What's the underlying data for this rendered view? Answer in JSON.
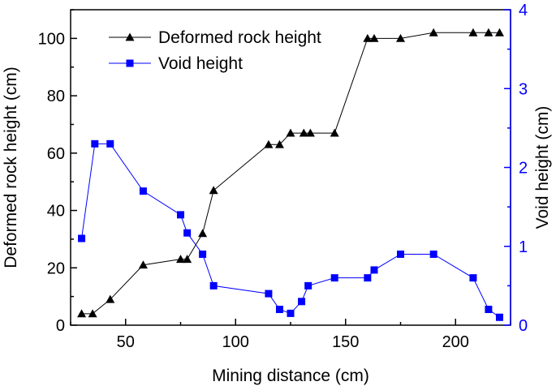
{
  "chart_data": {
    "type": "line",
    "xlabel": "Mining distance (cm)",
    "ylabel_left": "Deformed rock height (cm)",
    "ylabel_right": "Void height (cm)",
    "xlim": [
      25,
      225
    ],
    "ylim_left": [
      0,
      110
    ],
    "ylim_right": [
      0,
      4
    ],
    "x_ticks": [
      50,
      100,
      150,
      200
    ],
    "x_tick_labels": [
      "50",
      "100",
      "150",
      "200"
    ],
    "y_left_ticks": [
      0,
      20,
      40,
      60,
      80,
      100
    ],
    "y_left_tick_labels": [
      "0",
      "20",
      "40",
      "60",
      "80",
      "100"
    ],
    "y_right_ticks": [
      0,
      1,
      2,
      3,
      4
    ],
    "y_right_tick_labels": [
      "0",
      "1",
      "2",
      "3",
      "4"
    ],
    "legend_position": "top-left",
    "series": [
      {
        "name": "Deformed rock height",
        "axis": "left",
        "marker": "triangle",
        "color": "#000000",
        "x": [
          30,
          35,
          43,
          58,
          75,
          78,
          85,
          90,
          115,
          120,
          125,
          131,
          134,
          145,
          160,
          163,
          175,
          190,
          208,
          215,
          220
        ],
        "y": [
          4,
          4,
          9,
          21,
          23,
          23,
          32,
          47,
          63,
          63,
          67,
          67,
          67,
          67,
          100,
          100,
          100,
          102,
          102,
          102,
          102
        ]
      },
      {
        "name": "Void height",
        "axis": "right",
        "marker": "square",
        "color": "#0000ff",
        "x": [
          30,
          36,
          43,
          58,
          75,
          78,
          85,
          90,
          115,
          120,
          125,
          130,
          133,
          145,
          160,
          163,
          175,
          190,
          208,
          215,
          220
        ],
        "y": [
          1.1,
          2.3,
          2.3,
          1.7,
          1.4,
          1.17,
          0.9,
          0.5,
          0.4,
          0.2,
          0.15,
          0.3,
          0.5,
          0.6,
          0.6,
          0.7,
          0.9,
          0.9,
          0.6,
          0.2,
          0.1
        ]
      }
    ]
  }
}
